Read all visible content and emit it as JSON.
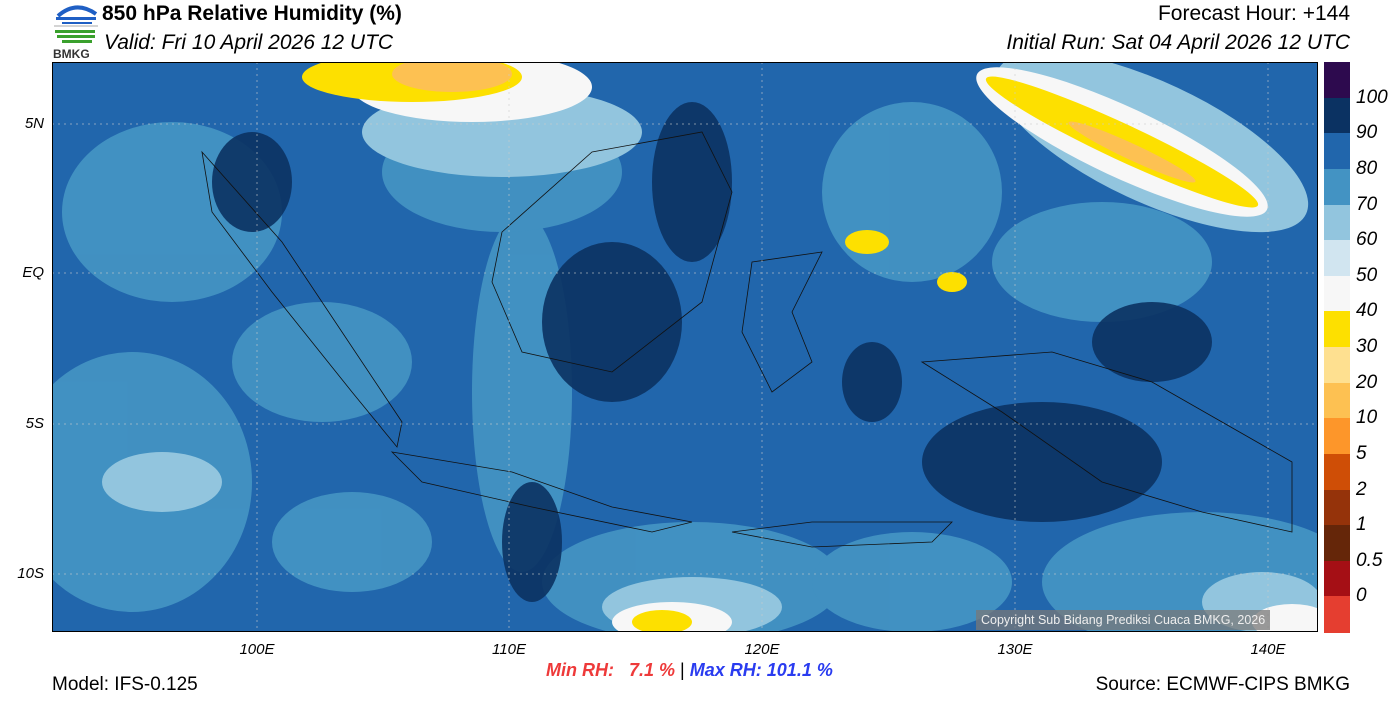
{
  "header": {
    "title": "850 hPa Relative Humidity (%)",
    "valid": "Valid: Fri 10 April 2026 12 UTC",
    "forecast_hour": "Forecast Hour: +144",
    "initial_run": "Initial Run: Sat 04 April 2026 12 UTC",
    "logo_text": "BMKG"
  },
  "axes": {
    "lat_labels": [
      "5N",
      "EQ",
      "5S",
      "10S"
    ],
    "lon_labels": [
      "100E",
      "110E",
      "120E",
      "130E",
      "140E"
    ]
  },
  "colorbar": {
    "labels": [
      "100",
      "90",
      "80",
      "70",
      "60",
      "50",
      "40",
      "30",
      "20",
      "10",
      "5",
      "2",
      "1",
      "0.5",
      "0"
    ],
    "colors": [
      "#2d0a4e",
      "#0b3262",
      "#2166ac",
      "#4393c3",
      "#92c5de",
      "#d1e5f0",
      "#f7f7f7",
      "#fde000",
      "#fee090",
      "#fdc152",
      "#fd962a",
      "#cf4e06",
      "#95330a",
      "#652609",
      "#a50f15",
      "#e53e30"
    ]
  },
  "footer": {
    "model": "Model: IFS-0.125",
    "min_label": "Min RH:",
    "min_value": "7.1 %",
    "separator": "|",
    "max_label": "Max RH:",
    "max_value": "101.1 %",
    "source": "Source: ECMWF-CIPS BMKG",
    "copyright": "Copyright Sub Bidang Prediksi Cuaca BMKG, 2026"
  }
}
